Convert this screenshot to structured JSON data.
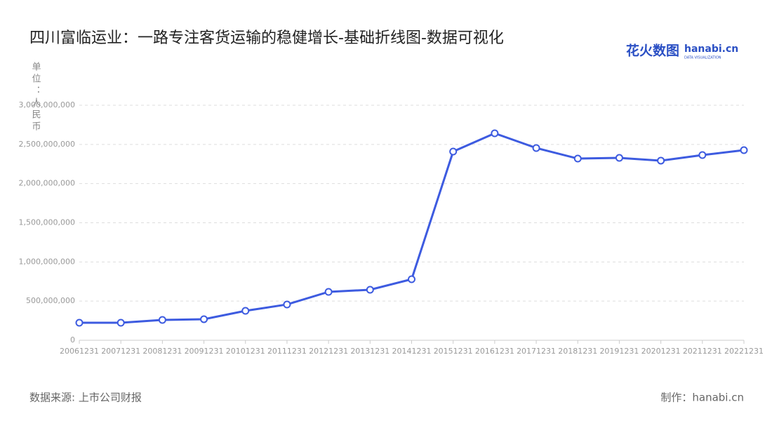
{
  "chart_data": {
    "type": "line",
    "title": "四川富临运业：一路专注客货运输的稳健增长-基础折线图-数据可视化",
    "y_label": "单位：人民币",
    "source": "数据来源: 上市公司财报",
    "credit": "制作：hanabi.cn",
    "logo": {
      "brand": "花火数图",
      "site": "hanabi.cn",
      "tagline": "DATA VISUALIZATION"
    },
    "categories": [
      "20061231",
      "20071231",
      "20081231",
      "20091231",
      "20101231",
      "20111231",
      "20121231",
      "20131231",
      "20141231",
      "20151231",
      "20161231",
      "20171231",
      "20181231",
      "20191231",
      "20201231",
      "20211231",
      "20221231"
    ],
    "series": [
      {
        "name": "人民币",
        "color": "#3d5be0",
        "values": [
          224000000,
          224000000,
          260000000,
          269000000,
          376000000,
          457000000,
          618000000,
          645000000,
          779000000,
          2409000000,
          2642000000,
          2454000000,
          2319000000,
          2328000000,
          2293000000,
          2364000000,
          2427000000
        ]
      }
    ],
    "ylim": [
      0,
      3000000000
    ],
    "yticks": [
      {
        "value": 0,
        "label": "0"
      },
      {
        "value": 500000000,
        "label": "500,000,000"
      },
      {
        "value": 1000000000,
        "label": "1,000,000,000"
      },
      {
        "value": 1500000000,
        "label": "1,500,000,000"
      },
      {
        "value": 2000000000,
        "label": "2,000,000,000"
      },
      {
        "value": 2500000000,
        "label": "2,500,000,000"
      },
      {
        "value": 3000000000,
        "label": "3,000,000,000"
      }
    ],
    "grid": true
  }
}
